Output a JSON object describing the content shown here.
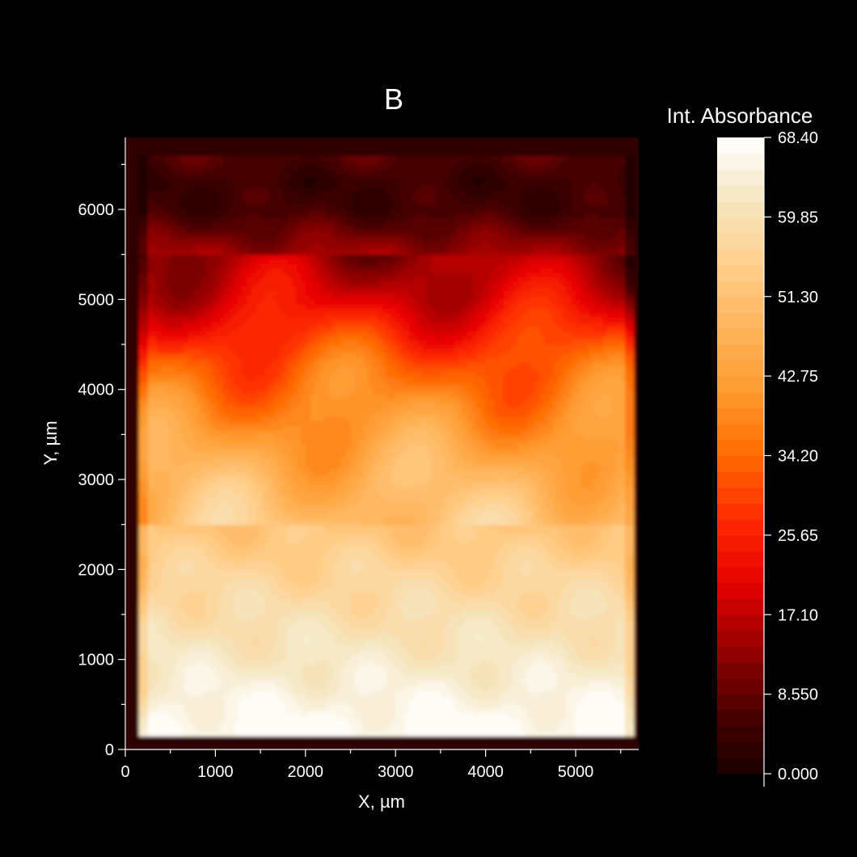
{
  "chart_data": {
    "type": "heatmap",
    "title": "B",
    "xlabel": "X, µm",
    "ylabel": "Y, µm",
    "xlim": [
      0,
      5700
    ],
    "ylim": [
      0,
      6800
    ],
    "x_ticks": [
      0,
      1000,
      2000,
      3000,
      4000,
      5000
    ],
    "x_tick_labels": [
      "0",
      "1000",
      "2000",
      "3000",
      "4000",
      "5000"
    ],
    "y_ticks": [
      0,
      1000,
      2000,
      3000,
      4000,
      5000,
      6000
    ],
    "y_tick_labels": [
      "0",
      "1000",
      "2000",
      "3000",
      "4000",
      "5000",
      "6000"
    ],
    "colorbar": {
      "title": "Int. Absorbance",
      "min": 0,
      "max": 68.4,
      "tick_values": [
        0,
        8.55,
        17.1,
        25.65,
        34.2,
        42.75,
        51.3,
        59.85,
        68.4
      ],
      "tick_labels": [
        "0.000",
        "8.550",
        "17.10",
        "25.65",
        "34.20",
        "42.75",
        "51.30",
        "59.85",
        "68.40"
      ],
      "levels": 40
    },
    "colormap": [
      "#1a0000",
      "#4d0000",
      "#990000",
      "#e60000",
      "#ff2a00",
      "#ff6a00",
      "#ff9a30",
      "#ffb45a",
      "#ffcf8c",
      "#f5e6c0",
      "#ffffff"
    ],
    "sample_region": {
      "x": [
        150,
        5650
      ],
      "y": [
        150,
        6600
      ]
    },
    "value_profile_y": [
      [
        0,
        68
      ],
      [
        300,
        67
      ],
      [
        1000,
        62
      ],
      [
        2000,
        56
      ],
      [
        3000,
        48
      ],
      [
        3700,
        40
      ],
      [
        4300,
        33
      ],
      [
        5000,
        20
      ],
      [
        5500,
        14
      ],
      [
        6000,
        5
      ],
      [
        6300,
        4
      ],
      [
        6600,
        7
      ]
    ]
  }
}
